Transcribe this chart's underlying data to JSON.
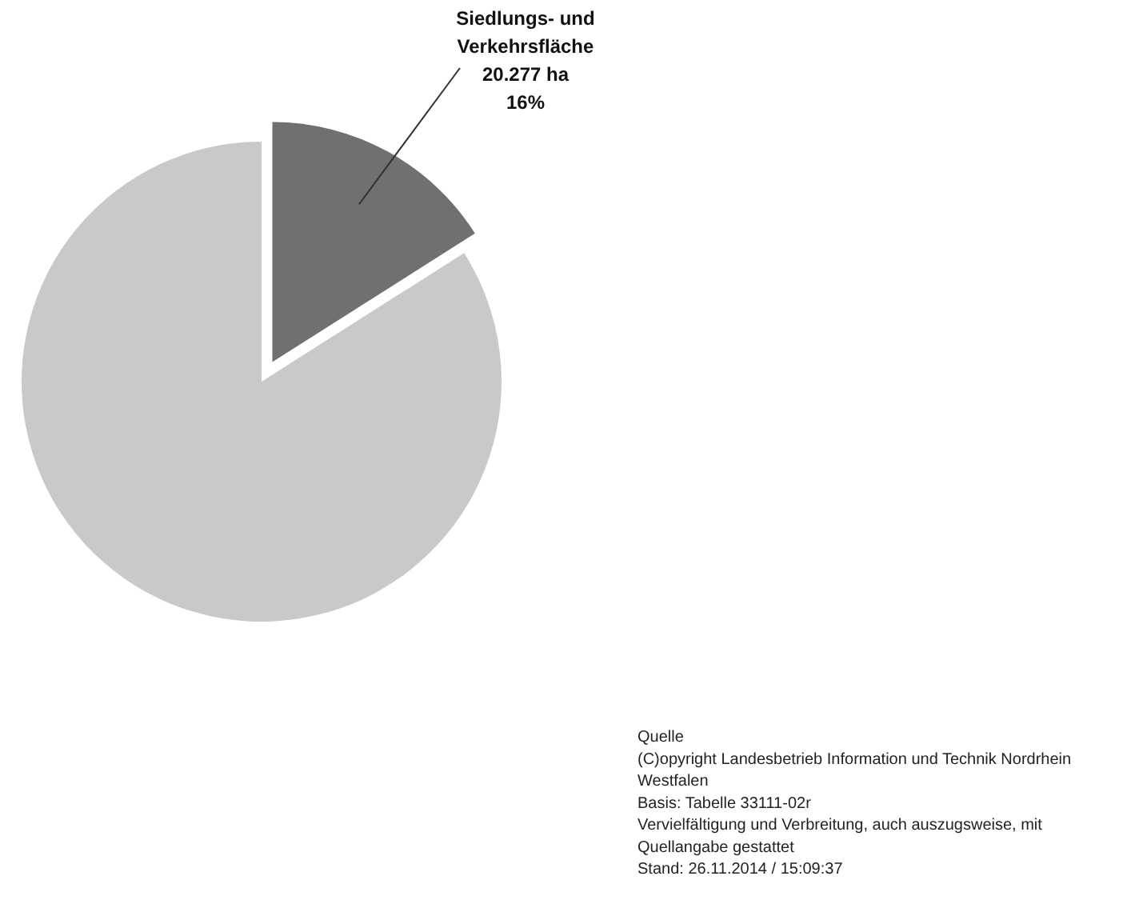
{
  "chart_data": {
    "type": "pie",
    "categories": [
      "Siedlungs- und Verkehrsfläche",
      null
    ],
    "values": [
      16,
      84
    ],
    "value_labels": [
      "20.277 ha\n16%",
      null
    ],
    "colors": [
      "#707070",
      "#c9c9c9"
    ],
    "legend": false,
    "annotations": [
      "Quelle\n(C)opyright Landesbetrieb Information und Technik Nordrhein\nWestfalen\nBasis: Tabelle 33111-02r\nVervielfältigung und Verbreitung, auch auszugsweise, mit\nQuellangabe gestattet\nStand: 26.11.2014 / 15:09:37"
    ]
  }
}
